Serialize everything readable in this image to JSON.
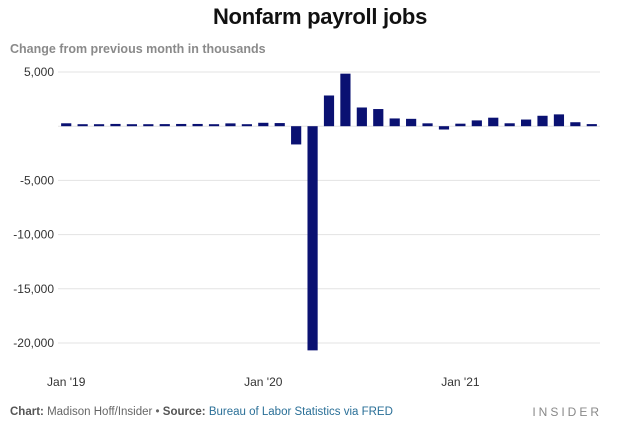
{
  "chart_data": {
    "type": "bar",
    "title": "Nonfarm payroll jobs",
    "subtitle": "Change from previous month in thousands",
    "ylim": [
      -21000,
      5600
    ],
    "yticks": [
      5000,
      0,
      -5000,
      -10000,
      -15000,
      -20000
    ],
    "ytick_labels": [
      "5,000",
      "",
      "-5,000",
      "-10,000",
      "-15,000",
      "-20,000"
    ],
    "xtick_labels": [
      {
        "label": "Jan '19",
        "index": 0
      },
      {
        "label": "Jan '20",
        "index": 12
      },
      {
        "label": "Jan '21",
        "index": 24
      }
    ],
    "grid": true,
    "bar_color": "#0a1172",
    "categories": [
      "Jan 2019",
      "Feb 2019",
      "Mar 2019",
      "Apr 2019",
      "May 2019",
      "Jun 2019",
      "Jul 2019",
      "Aug 2019",
      "Sep 2019",
      "Oct 2019",
      "Nov 2019",
      "Dec 2019",
      "Jan 2020",
      "Feb 2020",
      "Mar 2020",
      "Apr 2020",
      "May 2020",
      "Jun 2020",
      "Jul 2020",
      "Aug 2020",
      "Sep 2020",
      "Oct 2020",
      "Nov 2020",
      "Dec 2020",
      "Jan 2021",
      "Feb 2021",
      "Mar 2021",
      "Apr 2021",
      "May 2021",
      "Jun 2021",
      "Jul 2021",
      "Aug 2021",
      "Sep 2021"
    ],
    "values": [
      269,
      1,
      147,
      210,
      85,
      182,
      194,
      207,
      208,
      185,
      261,
      184,
      315,
      289,
      -1683,
      -20679,
      2833,
      4846,
      1726,
      1583,
      716,
      680,
      264,
      -306,
      233,
      536,
      785,
      269,
      614,
      962,
      1091,
      366,
      194
    ]
  },
  "footer": {
    "chart_label": "Chart:",
    "chart_credit": "Madison Hoff/Insider",
    "separator": "•",
    "source_label": "Source:",
    "source_text": "Bureau of Labor Statistics via FRED"
  },
  "brand": "INSIDER"
}
